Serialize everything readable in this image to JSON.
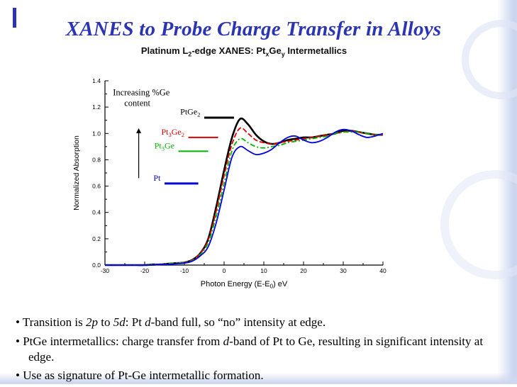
{
  "slide": {
    "title": "XANES to Probe Charge Transfer in Alloys",
    "accent_color": "#2b34b2"
  },
  "chart": {
    "title_segments": [
      {
        "text": "Platinum L"
      },
      {
        "text": "2",
        "sub": true
      },
      {
        "text": "-edge XANES: Pt"
      },
      {
        "text": "x",
        "sub": true
      },
      {
        "text": "Ge"
      },
      {
        "text": "y",
        "sub": true
      },
      {
        "text": " Intermetallics"
      }
    ]
  },
  "chart_data": {
    "type": "line",
    "title": "Platinum L2-edge XANES: PtxGey Intermetallics",
    "xlabel": "Photon Energy (E-E0) eV",
    "xlabel_parts": [
      [
        "Photon Energy (E-E",
        false
      ],
      [
        "0",
        true
      ],
      [
        ") eV",
        false
      ]
    ],
    "ylabel": "Normalized Absorption",
    "xlim": [
      -30,
      40
    ],
    "ylim": [
      0,
      1.4
    ],
    "x_ticks": [
      -30,
      -20,
      -10,
      0,
      10,
      20,
      30,
      40
    ],
    "y_ticks": [
      0,
      0.2,
      0.4,
      0.6,
      0.8,
      1.0,
      1.2,
      1.4
    ],
    "grid": false,
    "x": [
      -30,
      -28,
      -26,
      -24,
      -22,
      -20,
      -18,
      -16,
      -14,
      -12,
      -10,
      -8,
      -6,
      -4,
      -2,
      0,
      2,
      4,
      6,
      8,
      10,
      12,
      14,
      16,
      18,
      20,
      22,
      24,
      26,
      28,
      30,
      32,
      34,
      36,
      38,
      40
    ],
    "series": [
      {
        "name": "PtGe2",
        "label_parts": [
          [
            "PtGe",
            false
          ],
          [
            "2",
            true
          ]
        ],
        "color": "#000000",
        "width": 2.6,
        "dash": "",
        "label_anchor": [
          -6,
          1.145
        ],
        "pointer": {
          "x1": -5,
          "x2": 2.5,
          "y": 1.12,
          "width": 3
        },
        "values": [
          0,
          0,
          0,
          0,
          0,
          0,
          0.005,
          0.005,
          0.01,
          0.015,
          0.02,
          0.04,
          0.09,
          0.2,
          0.44,
          0.72,
          0.97,
          1.11,
          1.07,
          0.99,
          0.94,
          0.92,
          0.93,
          0.95,
          0.96,
          0.97,
          0.97,
          0.98,
          0.99,
          1.0,
          1.02,
          1.02,
          1.01,
          1.0,
          0.99,
          0.99
        ]
      },
      {
        "name": "Pt3Ge2",
        "label_parts": [
          [
            "Pt",
            false
          ],
          [
            "3",
            true
          ],
          [
            "Ge",
            false
          ],
          [
            "2",
            true
          ]
        ],
        "color": "#e00000",
        "width": 1.8,
        "dash": "7,3",
        "label_anchor": [
          -10,
          0.99
        ],
        "pointer": {
          "x1": -9,
          "x2": -1.5,
          "y": 0.97,
          "width": 2
        },
        "values": [
          0,
          0,
          0,
          0,
          0,
          0,
          0.005,
          0.005,
          0.01,
          0.015,
          0.02,
          0.04,
          0.09,
          0.19,
          0.41,
          0.68,
          0.92,
          1.04,
          1.0,
          0.95,
          0.93,
          0.92,
          0.93,
          0.94,
          0.95,
          0.96,
          0.97,
          0.98,
          0.99,
          1.0,
          1.01,
          1.02,
          1.01,
          1.0,
          0.99,
          0.99
        ]
      },
      {
        "name": "Pt3Ge",
        "label_parts": [
          [
            "Pt",
            false
          ],
          [
            "3",
            true
          ],
          [
            "Ge",
            false
          ]
        ],
        "color": "#00b400",
        "width": 1.8,
        "dash": "7,3,2,3",
        "label_anchor": [
          -12.5,
          0.885
        ],
        "pointer": {
          "x1": -11.5,
          "x2": -4,
          "y": 0.865,
          "width": 2
        },
        "values": [
          0,
          0,
          0,
          0,
          0,
          0,
          0.005,
          0.005,
          0.01,
          0.015,
          0.02,
          0.035,
          0.08,
          0.17,
          0.37,
          0.62,
          0.87,
          0.96,
          0.93,
          0.9,
          0.89,
          0.9,
          0.91,
          0.93,
          0.94,
          0.95,
          0.96,
          0.97,
          0.98,
          1.0,
          1.01,
          1.01,
          1.01,
          1.0,
          0.99,
          0.99
        ]
      },
      {
        "name": "Pt",
        "label_parts": [
          [
            "Pt",
            false
          ]
        ],
        "color": "#0000e0",
        "width": 1.8,
        "dash": "",
        "label_anchor": [
          -16,
          0.64
        ],
        "pointer": {
          "x1": -15,
          "x2": -6.5,
          "y": 0.62,
          "width": 3
        },
        "values": [
          0,
          0,
          0,
          0,
          0,
          0,
          0,
          0.005,
          0.005,
          0.01,
          0.015,
          0.03,
          0.07,
          0.14,
          0.32,
          0.57,
          0.82,
          0.9,
          0.87,
          0.84,
          0.85,
          0.88,
          0.93,
          0.97,
          0.98,
          0.95,
          0.93,
          0.94,
          0.97,
          1.01,
          1.03,
          1.02,
          0.99,
          0.97,
          0.98,
          1.0
        ]
      }
    ],
    "annotation": {
      "lines": [
        "Increasing %Ge",
        "content"
      ],
      "pos": [
        -28,
        1.29
      ],
      "arrow": {
        "x": -21.5,
        "y1": 0.66,
        "y2": 1.04
      }
    },
    "legend_position": "inside-left"
  },
  "bullets": [
    {
      "segments": [
        {
          "text": "Transition is "
        },
        {
          "text": "2p",
          "italic": true
        },
        {
          "text": " to "
        },
        {
          "text": "5d",
          "italic": true
        },
        {
          "text": ": Pt "
        },
        {
          "text": "d",
          "italic": true
        },
        {
          "text": "-band full, so “no” intensity at edge."
        }
      ]
    },
    {
      "segments": [
        {
          "text": "PtGe intermetallics: charge transfer from "
        },
        {
          "text": "d",
          "italic": true
        },
        {
          "text": "-band of Pt to Ge, resulting in significant intensity at edge."
        }
      ]
    },
    {
      "segments": [
        {
          "text": "Use as signature of Pt-Ge intermetallic formation."
        }
      ]
    }
  ]
}
